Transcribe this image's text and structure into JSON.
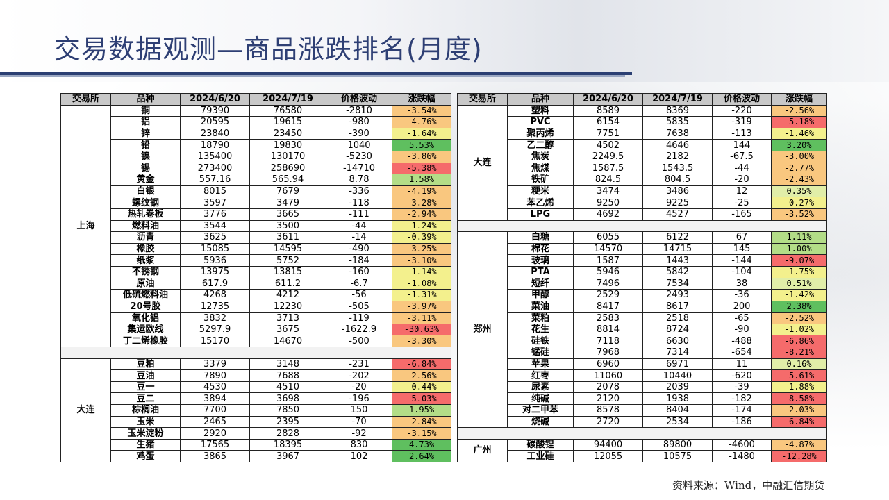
{
  "title": "交易数据观测—商品涨跌排名(月度)",
  "source": "资料来源：Wind，中融汇信期货",
  "headers": [
    "交易所",
    "品种",
    "2024/6/20",
    "2024/7/19",
    "价格波动",
    "涨跌幅"
  ],
  "colors": {
    "title": "#2e3f74",
    "header_bg": "#c8c8c8",
    "gain_strong": "#5fbf5f",
    "gain_mild": "#b3dd87",
    "gain_light": "#e1eea8",
    "loss_light": "#f3f08d",
    "loss_mild": "#f9c77f",
    "loss_strong": "#f56b6b"
  },
  "left_groups": [
    {
      "exchange": "上海",
      "rows": [
        {
          "name": "铜",
          "v1": "79390",
          "v2": "76580",
          "diff": "-2810",
          "pct": "-3.54%",
          "pv": -3.54
        },
        {
          "name": "铝",
          "v1": "20595",
          "v2": "19615",
          "diff": "-980",
          "pct": "-4.76%",
          "pv": -4.76
        },
        {
          "name": "锌",
          "v1": "23840",
          "v2": "23450",
          "diff": "-390",
          "pct": "-1.64%",
          "pv": -1.64
        },
        {
          "name": "铅",
          "v1": "18790",
          "v2": "19830",
          "diff": "1040",
          "pct": "5.53%",
          "pv": 5.53
        },
        {
          "name": "镍",
          "v1": "135400",
          "v2": "130170",
          "diff": "-5230",
          "pct": "-3.86%",
          "pv": -3.86
        },
        {
          "name": "锡",
          "v1": "273400",
          "v2": "258690",
          "diff": "-14710",
          "pct": "-5.38%",
          "pv": -5.38
        },
        {
          "name": "黄金",
          "v1": "557.16",
          "v2": "565.94",
          "diff": "8.78",
          "pct": "1.58%",
          "pv": 1.58
        },
        {
          "name": "白银",
          "v1": "8015",
          "v2": "7679",
          "diff": "-336",
          "pct": "-4.19%",
          "pv": -4.19
        },
        {
          "name": "螺纹钢",
          "v1": "3597",
          "v2": "3479",
          "diff": "-118",
          "pct": "-3.28%",
          "pv": -3.28
        },
        {
          "name": "热轧卷板",
          "v1": "3776",
          "v2": "3665",
          "diff": "-111",
          "pct": "-2.94%",
          "pv": -2.94
        },
        {
          "name": "燃料油",
          "v1": "3544",
          "v2": "3500",
          "diff": "-44",
          "pct": "-1.24%",
          "pv": -1.24
        },
        {
          "name": "沥青",
          "v1": "3625",
          "v2": "3611",
          "diff": "-14",
          "pct": "-0.39%",
          "pv": -0.39
        },
        {
          "name": "橡胶",
          "v1": "15085",
          "v2": "14595",
          "diff": "-490",
          "pct": "-3.25%",
          "pv": -3.25
        },
        {
          "name": "纸浆",
          "v1": "5936",
          "v2": "5752",
          "diff": "-184",
          "pct": "-3.10%",
          "pv": -3.1
        },
        {
          "name": "不锈钢",
          "v1": "13975",
          "v2": "13815",
          "diff": "-160",
          "pct": "-1.14%",
          "pv": -1.14
        },
        {
          "name": "原油",
          "v1": "617.9",
          "v2": "611.2",
          "diff": "-6.7",
          "pct": "-1.08%",
          "pv": -1.08
        },
        {
          "name": "低硫燃料油",
          "v1": "4268",
          "v2": "4212",
          "diff": "-56",
          "pct": "-1.31%",
          "pv": -1.31
        },
        {
          "name": "20号胶",
          "v1": "12735",
          "v2": "12230",
          "diff": "-505",
          "pct": "-3.97%",
          "pv": -3.97
        },
        {
          "name": "氧化铝",
          "v1": "3832",
          "v2": "3713",
          "diff": "-119",
          "pct": "-3.11%",
          "pv": -3.11
        },
        {
          "name": "集运欧线",
          "v1": "5297.9",
          "v2": "3675",
          "diff": "-1622.9",
          "pct": "-30.63%",
          "pv": -30.63
        },
        {
          "name": "丁二烯橡胶",
          "v1": "15170",
          "v2": "14670",
          "diff": "-500",
          "pct": "-3.30%",
          "pv": -3.3
        }
      ]
    },
    {
      "exchange": "大连",
      "rows": [
        {
          "name": "豆粕",
          "v1": "3379",
          "v2": "3148",
          "diff": "-231",
          "pct": "-6.84%",
          "pv": -6.84
        },
        {
          "name": "豆油",
          "v1": "7890",
          "v2": "7688",
          "diff": "-202",
          "pct": "-2.56%",
          "pv": -2.56
        },
        {
          "name": "豆一",
          "v1": "4530",
          "v2": "4510",
          "diff": "-20",
          "pct": "-0.44%",
          "pv": -0.44
        },
        {
          "name": "豆二",
          "v1": "3894",
          "v2": "3698",
          "diff": "-196",
          "pct": "-5.03%",
          "pv": -5.03
        },
        {
          "name": "棕榈油",
          "v1": "7700",
          "v2": "7850",
          "diff": "150",
          "pct": "1.95%",
          "pv": 1.95
        },
        {
          "name": "玉米",
          "v1": "2465",
          "v2": "2395",
          "diff": "-70",
          "pct": "-2.84%",
          "pv": -2.84
        },
        {
          "name": "玉米淀粉",
          "v1": "2920",
          "v2": "2828",
          "diff": "-92",
          "pct": "-3.15%",
          "pv": -3.15
        },
        {
          "name": "生猪",
          "v1": "17565",
          "v2": "18395",
          "diff": "830",
          "pct": "4.73%",
          "pv": 4.73
        },
        {
          "name": "鸡蛋",
          "v1": "3865",
          "v2": "3967",
          "diff": "102",
          "pct": "2.64%",
          "pv": 2.64
        }
      ]
    }
  ],
  "right_groups": [
    {
      "exchange": "大连",
      "rows": [
        {
          "name": "塑料",
          "v1": "8589",
          "v2": "8369",
          "diff": "-220",
          "pct": "-2.56%",
          "pv": -2.56
        },
        {
          "name": "PVC",
          "v1": "6154",
          "v2": "5835",
          "diff": "-319",
          "pct": "-5.18%",
          "pv": -5.18
        },
        {
          "name": "聚丙烯",
          "v1": "7751",
          "v2": "7638",
          "diff": "-113",
          "pct": "-1.46%",
          "pv": -1.46
        },
        {
          "name": "乙二醇",
          "v1": "4502",
          "v2": "4646",
          "diff": "144",
          "pct": "3.20%",
          "pv": 3.2
        },
        {
          "name": "焦炭",
          "v1": "2249.5",
          "v2": "2182",
          "diff": "-67.5",
          "pct": "-3.00%",
          "pv": -3.0
        },
        {
          "name": "焦煤",
          "v1": "1587.5",
          "v2": "1543.5",
          "diff": "-44",
          "pct": "-2.77%",
          "pv": -2.77
        },
        {
          "name": "铁矿",
          "v1": "824.5",
          "v2": "804.5",
          "diff": "-20",
          "pct": "-2.43%",
          "pv": -2.43
        },
        {
          "name": "粳米",
          "v1": "3474",
          "v2": "3486",
          "diff": "12",
          "pct": "0.35%",
          "pv": 0.35
        },
        {
          "name": "苯乙烯",
          "v1": "9250",
          "v2": "9225",
          "diff": "-25",
          "pct": "-0.27%",
          "pv": -0.27
        },
        {
          "name": "LPG",
          "v1": "4692",
          "v2": "4527",
          "diff": "-165",
          "pct": "-3.52%",
          "pv": -3.52
        }
      ]
    },
    {
      "exchange": "郑州",
      "rows": [
        {
          "name": "白糖",
          "v1": "6055",
          "v2": "6122",
          "diff": "67",
          "pct": "1.11%",
          "pv": 1.11
        },
        {
          "name": "棉花",
          "v1": "14570",
          "v2": "14715",
          "diff": "145",
          "pct": "1.00%",
          "pv": 1.0
        },
        {
          "name": "玻璃",
          "v1": "1587",
          "v2": "1443",
          "diff": "-144",
          "pct": "-9.07%",
          "pv": -9.07
        },
        {
          "name": "PTA",
          "v1": "5946",
          "v2": "5842",
          "diff": "-104",
          "pct": "-1.75%",
          "pv": -1.75
        },
        {
          "name": "短纤",
          "v1": "7496",
          "v2": "7534",
          "diff": "38",
          "pct": "0.51%",
          "pv": 0.51
        },
        {
          "name": "甲醇",
          "v1": "2529",
          "v2": "2493",
          "diff": "-36",
          "pct": "-1.42%",
          "pv": -1.42
        },
        {
          "name": "菜油",
          "v1": "8417",
          "v2": "8617",
          "diff": "200",
          "pct": "2.38%",
          "pv": 2.38
        },
        {
          "name": "菜粕",
          "v1": "2583",
          "v2": "2518",
          "diff": "-65",
          "pct": "-2.52%",
          "pv": -2.52
        },
        {
          "name": "花生",
          "v1": "8814",
          "v2": "8724",
          "diff": "-90",
          "pct": "-1.02%",
          "pv": -1.02
        },
        {
          "name": "硅铁",
          "v1": "7118",
          "v2": "6630",
          "diff": "-488",
          "pct": "-6.86%",
          "pv": -6.86
        },
        {
          "name": "锰硅",
          "v1": "7968",
          "v2": "7314",
          "diff": "-654",
          "pct": "-8.21%",
          "pv": -8.21
        },
        {
          "name": "苹果",
          "v1": "6960",
          "v2": "6971",
          "diff": "11",
          "pct": "0.16%",
          "pv": 0.16
        },
        {
          "name": "红枣",
          "v1": "11060",
          "v2": "10440",
          "diff": "-620",
          "pct": "-5.61%",
          "pv": -5.61
        },
        {
          "name": "尿素",
          "v1": "2078",
          "v2": "2039",
          "diff": "-39",
          "pct": "-1.88%",
          "pv": -1.88
        },
        {
          "name": "纯碱",
          "v1": "2120",
          "v2": "1938",
          "diff": "-182",
          "pct": "-8.58%",
          "pv": -8.58
        },
        {
          "name": "对二甲苯",
          "v1": "8578",
          "v2": "8404",
          "diff": "-174",
          "pct": "-2.03%",
          "pv": -2.03
        },
        {
          "name": "烧碱",
          "v1": "2720",
          "v2": "2534",
          "diff": "-186",
          "pct": "-6.84%",
          "pv": -6.84
        }
      ]
    },
    {
      "exchange": "广州",
      "rows": [
        {
          "name": "碳酸锂",
          "v1": "94400",
          "v2": "89800",
          "diff": "-4600",
          "pct": "-4.87%",
          "pv": -4.87
        },
        {
          "name": "工业硅",
          "v1": "12055",
          "v2": "10575",
          "diff": "-1480",
          "pct": "-12.28%",
          "pv": -12.28
        }
      ]
    }
  ]
}
